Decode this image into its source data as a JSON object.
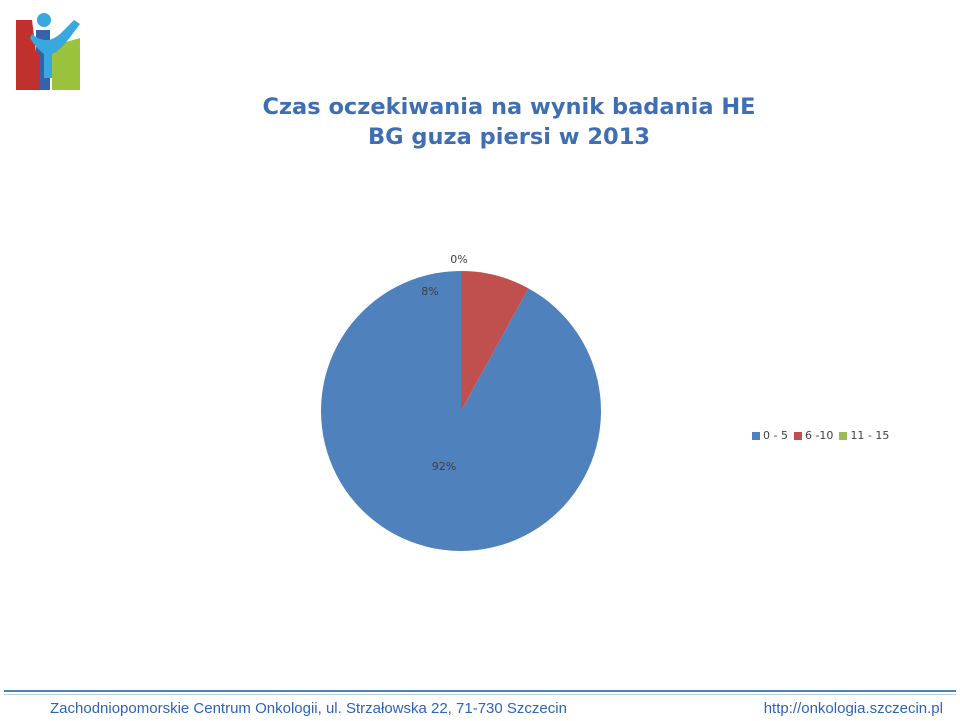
{
  "title": {
    "line1": "Czas oczekiwania na wynik badania HE",
    "line2": "BG guza piersi w 2013"
  },
  "colors": {
    "accent": "#3f6eb3",
    "slice_1": "#4f81bd",
    "slice_2": "#c0504d",
    "slice_3": "#9bbb59"
  },
  "chart_data": {
    "type": "pie",
    "title": "Czas oczekiwania na wynik badania HE BG guza piersi w 2013",
    "categories": [
      "0 - 5",
      "6 -10",
      "11 - 15"
    ],
    "values": [
      92,
      8,
      0
    ],
    "labels": [
      "92%",
      "8%",
      "0%"
    ],
    "unit": "%",
    "legend_position": "right"
  },
  "footer": {
    "left": "Zachodniopomorskie Centrum Onkologii,  ul. Strzałowska 22, 71-730 Szczecin",
    "right": "http://onkologia.szczecin.pl"
  }
}
